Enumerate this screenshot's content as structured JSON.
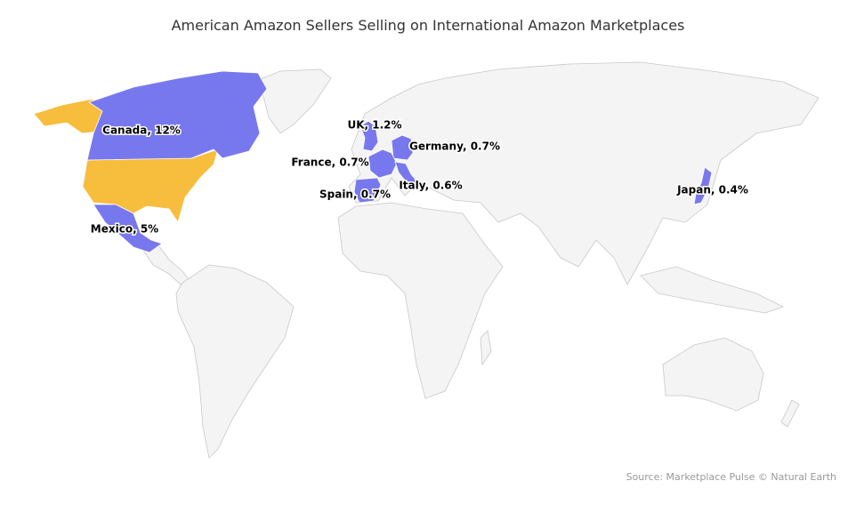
{
  "chart_data": {
    "type": "map",
    "title": "American Amazon Sellers Selling on International Amazon Marketplaces",
    "credits": "Source: Marketplace Pulse © Natural Earth",
    "values": [
      12,
      1.2,
      0.7,
      0.7,
      0.6,
      0.7,
      5,
      0.4
    ],
    "value_labels": [
      "Canada, 12%",
      "UK, 1.2%",
      "Germany, 0.7%",
      "France, 0.7%",
      "Italy, 0.6%",
      "Spain, 0.7%",
      "Mexico, 5%",
      "Japan, 0.4%"
    ],
    "color": "#7878ee"
  }
}
